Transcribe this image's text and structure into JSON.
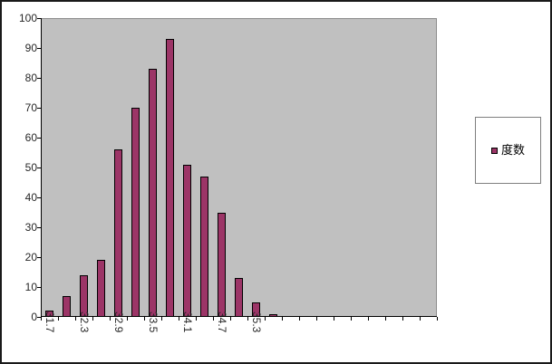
{
  "chart_data": {
    "type": "bar",
    "title": "",
    "categories": [
      "31.7",
      "",
      "32.3",
      "",
      "32.9",
      "",
      "33.5",
      "",
      "34.1",
      "",
      "34.7",
      "",
      "35.3",
      "",
      "",
      "",
      "",
      "",
      "",
      "",
      "",
      "",
      ""
    ],
    "values": [
      2,
      7,
      14,
      19,
      56,
      70,
      83,
      93,
      51,
      47,
      35,
      13,
      5,
      1,
      0,
      0,
      0,
      0,
      0,
      0,
      0,
      0,
      0
    ],
    "series": [
      {
        "name": "度数",
        "values": [
          2,
          7,
          14,
          19,
          56,
          70,
          83,
          93,
          51,
          47,
          35,
          13,
          5,
          1,
          0,
          0,
          0,
          0,
          0,
          0,
          0,
          0,
          0
        ]
      }
    ],
    "visible_x_labels": [
      "31.7",
      "32.3",
      "32.9",
      "33.5",
      "34.1",
      "34.7",
      "35.3"
    ],
    "y_ticks": [
      0,
      10,
      20,
      30,
      40,
      50,
      60,
      70,
      80,
      90,
      100
    ],
    "ylim": [
      0,
      100
    ],
    "xlabel": "",
    "ylabel": "",
    "grid": "off",
    "legend_position": "right",
    "x_label_rotation_deg": 90
  },
  "legend": {
    "label": "度数"
  },
  "colors": {
    "bar_fill": "#9C3567",
    "bar_border": "#000000",
    "plot_bg": "#C0C0C0",
    "axis": "#000000",
    "text": "#262626",
    "legend_border": "#7F7F7F",
    "frame_border": "#1A1A1A",
    "background": "#FFFFFF"
  }
}
